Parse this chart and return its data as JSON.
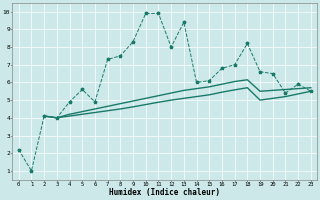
{
  "title": "",
  "xlabel": "Humidex (Indice chaleur)",
  "bg_color": "#cce8e8",
  "line_color": "#1a7a6a",
  "xlim": [
    -0.5,
    23.5
  ],
  "ylim": [
    0.5,
    10.5
  ],
  "xticks": [
    0,
    1,
    2,
    3,
    4,
    5,
    6,
    7,
    8,
    9,
    10,
    11,
    12,
    13,
    14,
    15,
    16,
    17,
    18,
    19,
    20,
    21,
    22,
    23
  ],
  "yticks": [
    1,
    2,
    3,
    4,
    5,
    6,
    7,
    8,
    9,
    10
  ],
  "line1_x": [
    0,
    1,
    2,
    3,
    4,
    5,
    6,
    7,
    8,
    9,
    10,
    11,
    12,
    13,
    14,
    15,
    16,
    17,
    18,
    19,
    20,
    21,
    22,
    23
  ],
  "line1_y": [
    2.2,
    1.0,
    4.1,
    4.0,
    4.9,
    5.6,
    4.9,
    7.3,
    7.5,
    8.3,
    9.9,
    9.9,
    8.0,
    9.4,
    6.0,
    6.1,
    6.8,
    7.0,
    8.2,
    6.6,
    6.5,
    5.4,
    5.9,
    5.5
  ],
  "line2_x": [
    2,
    3,
    4,
    5,
    6,
    7,
    8,
    9,
    10,
    11,
    12,
    13,
    14,
    15,
    16,
    17,
    18,
    19,
    20,
    21,
    22,
    23
  ],
  "line2_y": [
    4.1,
    4.0,
    4.2,
    4.35,
    4.5,
    4.65,
    4.8,
    4.95,
    5.1,
    5.25,
    5.4,
    5.55,
    5.65,
    5.75,
    5.9,
    6.05,
    6.15,
    5.5,
    5.55,
    5.6,
    5.65,
    5.7
  ],
  "line3_x": [
    2,
    3,
    4,
    5,
    6,
    7,
    8,
    9,
    10,
    11,
    12,
    13,
    14,
    15,
    16,
    17,
    18,
    19,
    20,
    21,
    22,
    23
  ],
  "line3_y": [
    4.1,
    4.0,
    4.1,
    4.2,
    4.3,
    4.4,
    4.5,
    4.62,
    4.75,
    4.88,
    5.0,
    5.1,
    5.2,
    5.3,
    5.45,
    5.58,
    5.7,
    5.0,
    5.1,
    5.2,
    5.35,
    5.5
  ]
}
